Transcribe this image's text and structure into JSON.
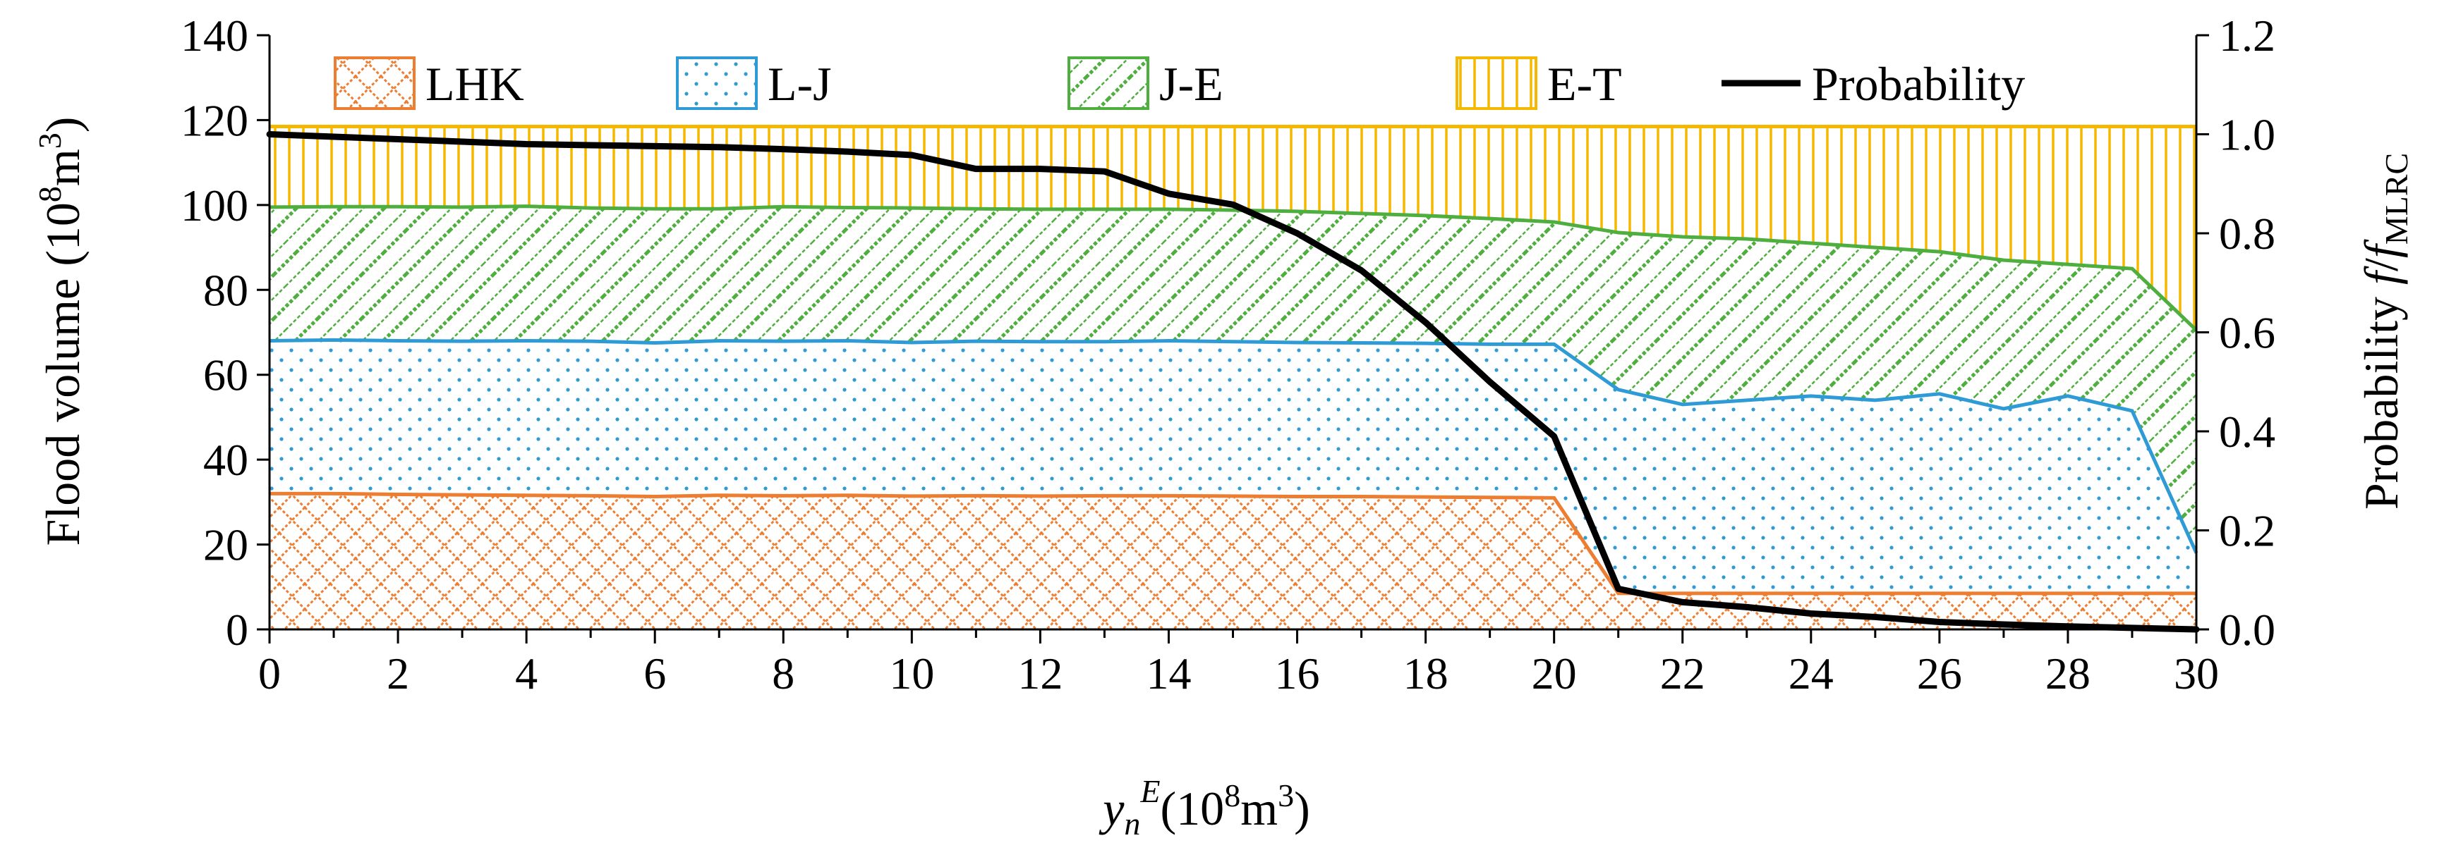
{
  "chart_data": {
    "type": "area",
    "stacked": true,
    "x": [
      0,
      1,
      2,
      3,
      4,
      5,
      6,
      7,
      8,
      9,
      10,
      11,
      12,
      13,
      14,
      15,
      16,
      17,
      18,
      19,
      20,
      21,
      22,
      23,
      24,
      25,
      26,
      27,
      28,
      29,
      30
    ],
    "x_ticks": [
      0,
      2,
      4,
      6,
      8,
      10,
      12,
      14,
      16,
      18,
      20,
      22,
      24,
      26,
      28,
      30
    ],
    "xlim": [
      0,
      30
    ],
    "xlabel": {
      "main": "y",
      "sub": "n",
      "sup": "E",
      "unit_pre": "(10",
      "unit_exp": "8",
      "unit_mid": "m",
      "unit_exp2": "3",
      "unit_post": ")"
    },
    "ylabel": {
      "pre": "Flood volume (10",
      "exp": "8",
      "mid": "m",
      "exp2": "3",
      "post": ")"
    },
    "ylim": [
      0,
      140
    ],
    "y_ticks": [
      0,
      20,
      40,
      60,
      80,
      100,
      120,
      140
    ],
    "y2label": {
      "pre": "Probability  ",
      "f1": "f",
      "slash": "/",
      "f2": "f",
      "sub": "MLRC"
    },
    "y2lim": [
      0,
      1.2
    ],
    "y2_ticks": [
      "0.0",
      "0.2",
      "0.4",
      "0.6",
      "0.8",
      "1.0",
      "1.2"
    ],
    "y2_tick_values": [
      0,
      0.2,
      0.4,
      0.6,
      0.8,
      1.0,
      1.2
    ],
    "legend_placement": "top",
    "series": [
      {
        "name": "LHK",
        "kind": "area",
        "color": "#ED7D31",
        "pattern": "crosshatch",
        "cumulative_top": [
          32,
          32,
          31.8,
          31.7,
          31.6,
          31.5,
          31.3,
          31.6,
          31.5,
          31.6,
          31.4,
          31.5,
          31.4,
          31.5,
          31.5,
          31.4,
          31.3,
          31.3,
          31.2,
          31.1,
          31,
          8.5,
          8.5,
          8.5,
          8.5,
          8.5,
          8.5,
          8.5,
          8.5,
          8.5,
          8.5
        ]
      },
      {
        "name": "L-J",
        "kind": "area",
        "color": "#2E9BD6",
        "pattern": "dots",
        "cumulative_top": [
          68,
          68.2,
          68,
          67.9,
          68,
          67.9,
          67.5,
          68,
          67.9,
          68,
          67.6,
          67.9,
          67.8,
          67.8,
          68,
          67.8,
          67.6,
          67.5,
          67.4,
          67.2,
          67.2,
          56.5,
          53,
          54,
          55,
          54,
          55.5,
          52,
          55,
          51.5,
          18
        ]
      },
      {
        "name": "J-E",
        "kind": "area",
        "color": "#4EAE3E",
        "pattern": "diagonal",
        "cumulative_top": [
          99.5,
          99.6,
          99.6,
          99.5,
          99.7,
          99.3,
          99.1,
          99.1,
          99.6,
          99.4,
          99.3,
          99.1,
          99,
          99,
          99,
          98.8,
          98.5,
          98,
          97.5,
          96.8,
          96,
          93.5,
          92.5,
          92,
          91,
          90,
          89,
          87,
          86,
          85,
          70.5
        ]
      },
      {
        "name": "E-T",
        "kind": "area",
        "color": "#F5B800",
        "pattern": "vertical",
        "cumulative_top": [
          118.5,
          118.5,
          118.5,
          118.5,
          118.5,
          118.5,
          118.5,
          118.5,
          118.5,
          118.5,
          118.5,
          118.5,
          118.5,
          118.5,
          118.5,
          118.5,
          118.5,
          118.5,
          118.5,
          118.5,
          118.5,
          118.5,
          118.5,
          118.5,
          118.5,
          118.5,
          118.5,
          118.5,
          118.5,
          118.5,
          118.5
        ]
      },
      {
        "name": "Probability",
        "kind": "line",
        "axis": "right",
        "color": "#000000",
        "values": [
          1.0,
          0.995,
          0.99,
          0.985,
          0.98,
          0.978,
          0.976,
          0.974,
          0.97,
          0.965,
          0.958,
          0.93,
          0.93,
          0.925,
          0.88,
          0.858,
          0.8,
          0.725,
          0.62,
          0.5,
          0.39,
          0.082,
          0.055,
          0.045,
          0.032,
          0.025,
          0.015,
          0.01,
          0.006,
          0.003,
          0.0
        ]
      }
    ]
  }
}
